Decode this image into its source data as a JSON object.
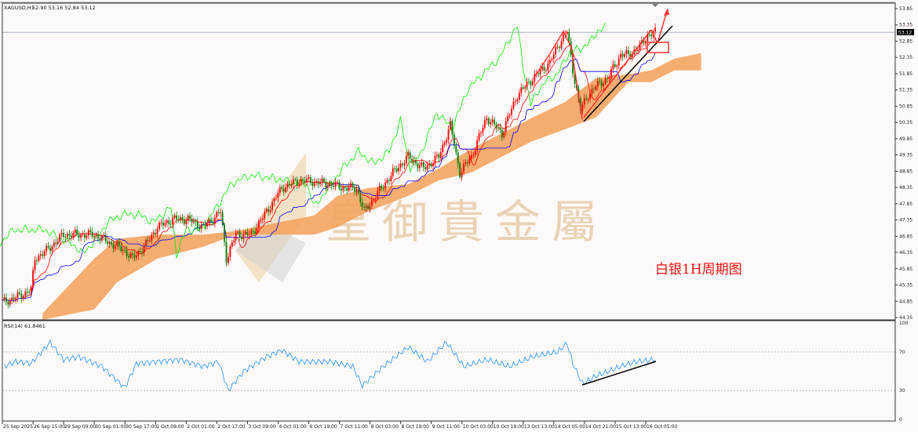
{
  "header": {
    "symbol": "XAGUSD,H1",
    "ohlc": "52.90 53.16 52.84 53.12"
  },
  "rsi_header": "RSI(14) 61.8461",
  "current_price_label": "53.12",
  "watermark": "皇御貴金屬",
  "annotation": "白银1H周期图",
  "colors": {
    "bull": "#ff0000",
    "bear": "#008000",
    "cloud": "#f4a460",
    "tenkan": "#ff0000",
    "kijun": "#0000ff",
    "chikou": "#00ee00",
    "rsi": "#1e90ff",
    "annotation": "#ee1111",
    "trendline": "#000000"
  },
  "chart_data": [
    {
      "type": "candlestick",
      "title": "",
      "indicators": [
        "Ichimoku (Tenkan, Kijun, Chikou, Kumo)"
      ],
      "ylim": [
        44.35,
        53.85
      ],
      "y_ticks": [
        "53.85",
        "53.35",
        "52.85",
        "52.35",
        "51.85",
        "51.35",
        "50.85",
        "50.35",
        "49.85",
        "49.35",
        "48.85",
        "48.35",
        "47.85",
        "47.35",
        "46.85",
        "46.35",
        "45.85",
        "45.35",
        "44.85",
        "44.35"
      ],
      "x_ticks": [
        "25 Sep 2025",
        "26 Sep 15:00",
        "29 Sep 09:00",
        "30 Sep 01:00",
        "30 Sep 17:00",
        "1 Oct 09:00",
        "2 Oct 01:00",
        "2 Oct 17:00",
        "3 Oct 09:00",
        "4 Oct 01:00",
        "6 Oct 19:00",
        "7 Oct 11:00",
        "8 Oct 03:00",
        "8 Oct 19:00",
        "9 Oct 11:00",
        "10 Oct 03:00",
        "10 Oct 19:00",
        "13 Oct 13:00",
        "14 Oct 05:00",
        "14 Oct 21:00",
        "15 Oct 13:00",
        "16 Oct 05:00"
      ],
      "close_path": [
        [
          1,
          44.84
        ],
        [
          7,
          44.96
        ],
        [
          15,
          45.2
        ],
        [
          17,
          46.16
        ],
        [
          23,
          46.4
        ],
        [
          32,
          46.9
        ],
        [
          40,
          46.9
        ],
        [
          48,
          46.9
        ],
        [
          56,
          46.65
        ],
        [
          64,
          46.4
        ],
        [
          68,
          46.16
        ],
        [
          75,
          46.6
        ],
        [
          81,
          47.13
        ],
        [
          89,
          47.37
        ],
        [
          97,
          47.37
        ],
        [
          105,
          47.13
        ],
        [
          114,
          47.6
        ],
        [
          117,
          46.16
        ],
        [
          122,
          46.9
        ],
        [
          130,
          46.9
        ],
        [
          138,
          47.6
        ],
        [
          146,
          48.33
        ],
        [
          155,
          48.57
        ],
        [
          163,
          48.52
        ],
        [
          171,
          48.45
        ],
        [
          179,
          48.33
        ],
        [
          185,
          48.33
        ],
        [
          189,
          47.6
        ],
        [
          195,
          48.1
        ],
        [
          204,
          48.8
        ],
        [
          212,
          49.3
        ],
        [
          220,
          48.93
        ],
        [
          228,
          49.3
        ],
        [
          234,
          50.26
        ],
        [
          239,
          48.8
        ],
        [
          245,
          49.3
        ],
        [
          253,
          50.5
        ],
        [
          261,
          50.02
        ],
        [
          269,
          51.2
        ],
        [
          277,
          51.7
        ],
        [
          286,
          52.2
        ],
        [
          292,
          52.9
        ],
        [
          295,
          53.15
        ],
        [
          298,
          51.95
        ],
        [
          302,
          50.74
        ],
        [
          306,
          51.2
        ],
        [
          310,
          51.46
        ],
        [
          316,
          51.7
        ],
        [
          323,
          52.43
        ],
        [
          327,
          52.43
        ],
        [
          333,
          52.67
        ],
        [
          337,
          53.03
        ],
        [
          341,
          53.12
        ]
      ],
      "cloud": [
        [
          21,
          44.48,
          44.28
        ],
        [
          48,
          46.16,
          44.6
        ],
        [
          60,
          46.77,
          45.44
        ],
        [
          81,
          46.9,
          46.16
        ],
        [
          105,
          46.9,
          46.53
        ],
        [
          122,
          47.01,
          46.9
        ],
        [
          163,
          47.49,
          46.9
        ],
        [
          175,
          48.09,
          47.13
        ],
        [
          191,
          48.33,
          47.61
        ],
        [
          212,
          48.45,
          48.09
        ],
        [
          228,
          48.93,
          48.57
        ],
        [
          245,
          49.54,
          48.81
        ],
        [
          261,
          50.02,
          49.3
        ],
        [
          277,
          50.5,
          49.78
        ],
        [
          294,
          50.98,
          50.14
        ],
        [
          310,
          51.71,
          50.5
        ],
        [
          327,
          51.83,
          51.59
        ],
        [
          339,
          51.95,
          51.59
        ],
        [
          351,
          52.31,
          51.95
        ],
        [
          365,
          52.48,
          51.95
        ]
      ],
      "current_price": 53.12
    },
    {
      "type": "line",
      "title": "RSI(14) 61.8461",
      "ylim": [
        0,
        100
      ],
      "y_ticks": [
        "100",
        "70",
        "30",
        "0"
      ],
      "levels": [
        70,
        30
      ],
      "values": [
        [
          1,
          55
        ],
        [
          7,
          60
        ],
        [
          15,
          58
        ],
        [
          25,
          80
        ],
        [
          32,
          62
        ],
        [
          40,
          65
        ],
        [
          52,
          55
        ],
        [
          64,
          33
        ],
        [
          70,
          58
        ],
        [
          81,
          60
        ],
        [
          93,
          62
        ],
        [
          105,
          55
        ],
        [
          113,
          60
        ],
        [
          118,
          30
        ],
        [
          126,
          50
        ],
        [
          138,
          65
        ],
        [
          146,
          72
        ],
        [
          155,
          60
        ],
        [
          171,
          60
        ],
        [
          183,
          55
        ],
        [
          188,
          35
        ],
        [
          199,
          55
        ],
        [
          212,
          75
        ],
        [
          222,
          60
        ],
        [
          232,
          80
        ],
        [
          241,
          55
        ],
        [
          253,
          62
        ],
        [
          265,
          55
        ],
        [
          277,
          65
        ],
        [
          290,
          70
        ],
        [
          295,
          79
        ],
        [
          298,
          58
        ],
        [
          303,
          37
        ],
        [
          310,
          45
        ],
        [
          323,
          55
        ],
        [
          331,
          60
        ],
        [
          341,
          62
        ]
      ]
    }
  ]
}
